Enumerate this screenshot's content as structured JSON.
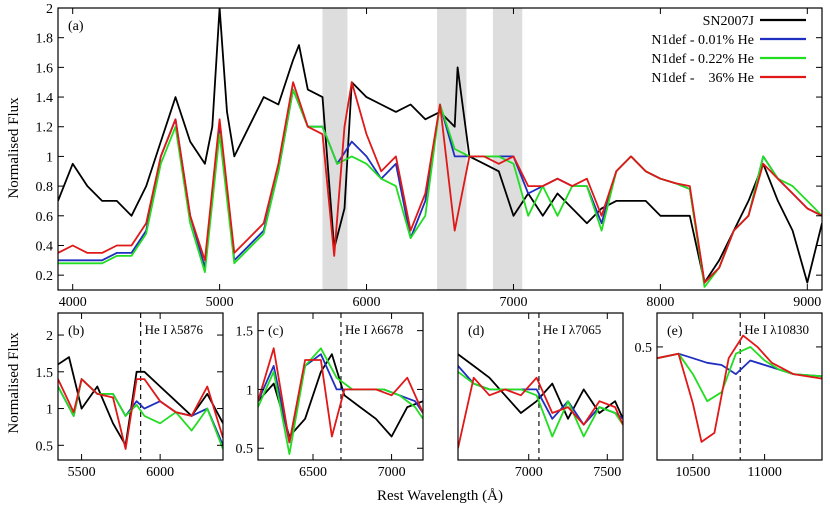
{
  "figure": {
    "ylabel": "Normalised Flux",
    "xlabel": "Rest Wavelength (Å)"
  },
  "colors": {
    "SN2007J": "#000000",
    "N1def - 0.01% He": "#1f2fbf",
    "N1def - 0.22% He": "#22dd22",
    "N1def -    36% He": "#e01818",
    "shade": "#dddddd"
  },
  "chart_data": [
    {
      "panel": "(a)",
      "type": "line",
      "xlim": [
        3900,
        9100
      ],
      "ylim": [
        0.1,
        2.0
      ],
      "xticks": [
        4000,
        5000,
        6000,
        7000,
        8000,
        9000
      ],
      "yticks": [
        0.2,
        0.4,
        0.6,
        0.8,
        1,
        1.2,
        1.4,
        1.6,
        1.8,
        2
      ],
      "ylabel": "Normalised Flux",
      "shaded_regions": [
        [
          5700,
          5870
        ],
        [
          6480,
          6680
        ],
        [
          6860,
          7060
        ]
      ],
      "legend": [
        "SN2007J",
        "N1def - 0.01% He",
        "N1def - 0.22% He",
        "N1def -    36% He"
      ],
      "legend_position": "top-right",
      "series": [
        {
          "name": "SN2007J",
          "x": [
            3900,
            4000,
            4100,
            4200,
            4300,
            4400,
            4500,
            4600,
            4650,
            4700,
            4800,
            4900,
            4950,
            5000,
            5050,
            5100,
            5200,
            5300,
            5400,
            5500,
            5540,
            5600,
            5700,
            5780,
            5850,
            5900,
            6000,
            6100,
            6200,
            6300,
            6400,
            6500,
            6600,
            6620,
            6700,
            6800,
            6900,
            7000,
            7100,
            7200,
            7300,
            7400,
            7500,
            7600,
            7700,
            7800,
            7900,
            8000,
            8100,
            8200,
            8300,
            8400,
            8500,
            8600,
            8700,
            8800,
            8900,
            9000,
            9100
          ],
          "y": [
            0.7,
            0.95,
            0.8,
            0.7,
            0.7,
            0.6,
            0.8,
            1.1,
            1.25,
            1.4,
            1.1,
            0.95,
            1.2,
            2.0,
            1.3,
            1.0,
            1.2,
            1.4,
            1.35,
            1.65,
            1.75,
            1.45,
            1.4,
            0.38,
            0.65,
            1.5,
            1.4,
            1.35,
            1.3,
            1.35,
            1.25,
            1.3,
            1.2,
            1.6,
            1.0,
            0.95,
            0.9,
            0.6,
            0.75,
            0.6,
            0.75,
            0.65,
            0.55,
            0.65,
            0.7,
            0.7,
            0.7,
            0.6,
            0.6,
            0.6,
            0.15,
            0.3,
            0.5,
            0.7,
            0.95,
            0.7,
            0.5,
            0.15,
            0.55
          ]
        },
        {
          "name": "N1def - 0.01% He",
          "x": [
            3900,
            4000,
            4100,
            4200,
            4300,
            4400,
            4500,
            4600,
            4700,
            4800,
            4900,
            5000,
            5100,
            5200,
            5300,
            5400,
            5500,
            5600,
            5700,
            5800,
            5900,
            6000,
            6100,
            6200,
            6300,
            6400,
            6500,
            6600,
            6700,
            6800,
            6900,
            7000,
            7100,
            7200,
            7300,
            7400,
            7500,
            7600,
            7700,
            7800,
            7900,
            8000,
            8100,
            8200,
            8300,
            8400,
            8500,
            8600,
            8700,
            8800,
            8900,
            9000,
            9100
          ],
          "y": [
            0.3,
            0.3,
            0.3,
            0.3,
            0.35,
            0.35,
            0.5,
            1.0,
            1.25,
            0.6,
            0.25,
            1.2,
            0.3,
            0.4,
            0.5,
            0.9,
            1.45,
            1.2,
            1.2,
            0.95,
            1.1,
            1.0,
            0.85,
            0.95,
            0.45,
            0.7,
            1.35,
            1.0,
            1.0,
            1.0,
            1.0,
            1.0,
            0.75,
            0.8,
            0.85,
            0.8,
            0.8,
            0.55,
            0.9,
            1.0,
            0.9,
            0.85,
            0.82,
            0.78,
            0.15,
            0.25,
            0.5,
            0.6,
            1.0,
            0.85,
            0.75,
            0.65,
            0.6
          ]
        },
        {
          "name": "N1def - 0.22% He",
          "x": [
            3900,
            4000,
            4100,
            4200,
            4300,
            4400,
            4500,
            4600,
            4700,
            4800,
            4900,
            5000,
            5100,
            5200,
            5300,
            5400,
            5500,
            5600,
            5700,
            5800,
            5900,
            6000,
            6100,
            6200,
            6300,
            6400,
            6500,
            6600,
            6700,
            6800,
            6900,
            7000,
            7100,
            7200,
            7300,
            7400,
            7500,
            7600,
            7700,
            7800,
            7900,
            8000,
            8100,
            8200,
            8300,
            8400,
            8500,
            8600,
            8700,
            8800,
            8900,
            9000,
            9100
          ],
          "y": [
            0.28,
            0.28,
            0.28,
            0.28,
            0.33,
            0.33,
            0.48,
            0.95,
            1.2,
            0.55,
            0.22,
            1.15,
            0.28,
            0.38,
            0.48,
            0.9,
            1.45,
            1.2,
            1.2,
            0.95,
            1.0,
            0.95,
            0.85,
            0.8,
            0.45,
            0.6,
            1.35,
            1.05,
            1.0,
            1.0,
            1.0,
            0.95,
            0.6,
            0.8,
            0.6,
            0.8,
            0.8,
            0.5,
            0.9,
            1.0,
            0.9,
            0.85,
            0.82,
            0.78,
            0.12,
            0.25,
            0.5,
            0.6,
            1.0,
            0.85,
            0.8,
            0.7,
            0.6
          ]
        },
        {
          "name": "N1def -    36% He",
          "x": [
            3900,
            4000,
            4100,
            4200,
            4300,
            4400,
            4500,
            4600,
            4700,
            4800,
            4900,
            5000,
            5100,
            5200,
            5300,
            5400,
            5500,
            5600,
            5700,
            5780,
            5850,
            5900,
            6000,
            6100,
            6200,
            6300,
            6400,
            6500,
            6600,
            6700,
            6800,
            6900,
            7000,
            7100,
            7200,
            7300,
            7400,
            7500,
            7600,
            7700,
            7800,
            7900,
            8000,
            8100,
            8200,
            8300,
            8400,
            8500,
            8600,
            8700,
            8800,
            8900,
            9000,
            9100
          ],
          "y": [
            0.35,
            0.4,
            0.35,
            0.35,
            0.4,
            0.4,
            0.55,
            1.0,
            1.25,
            0.6,
            0.3,
            1.25,
            0.35,
            0.45,
            0.55,
            0.95,
            1.5,
            1.2,
            1.15,
            0.33,
            1.2,
            1.5,
            1.15,
            0.9,
            1.0,
            0.5,
            0.75,
            1.35,
            0.5,
            1.0,
            1.0,
            0.95,
            1.0,
            0.8,
            0.8,
            0.85,
            0.8,
            0.85,
            0.6,
            0.9,
            1.0,
            0.9,
            0.85,
            0.82,
            0.8,
            0.15,
            0.25,
            0.5,
            0.6,
            0.95,
            0.85,
            0.75,
            0.65,
            0.6
          ]
        }
      ]
    },
    {
      "panel": "(b)",
      "type": "line",
      "annotation": "He I λ5876",
      "marker_x": 5876,
      "xlim": [
        5350,
        6400
      ],
      "ylim": [
        0.3,
        2.3
      ],
      "xticks": [
        5500,
        6000
      ],
      "yticks": [
        0.5,
        1,
        1.5,
        2
      ],
      "ylabel": "Normalised Flux",
      "series": [
        {
          "name": "SN2007J",
          "x": [
            5350,
            5420,
            5500,
            5600,
            5700,
            5780,
            5850,
            5900,
            6000,
            6100,
            6200,
            6300,
            6400
          ],
          "y": [
            1.6,
            1.7,
            1.0,
            1.3,
            0.8,
            0.5,
            1.5,
            1.5,
            1.3,
            1.1,
            0.9,
            1.2,
            0.8
          ]
        },
        {
          "name": "N1def - 0.01% He",
          "x": [
            5350,
            5450,
            5500,
            5600,
            5700,
            5780,
            5850,
            5900,
            6000,
            6100,
            6200,
            6300,
            6400
          ],
          "y": [
            1.3,
            0.9,
            1.4,
            1.2,
            1.2,
            0.9,
            1.1,
            1.0,
            1.1,
            0.95,
            0.9,
            1.0,
            0.5
          ]
        },
        {
          "name": "N1def - 0.22% He",
          "x": [
            5350,
            5450,
            5500,
            5600,
            5700,
            5780,
            5850,
            5900,
            6000,
            6100,
            6200,
            6300,
            6400
          ],
          "y": [
            1.3,
            0.9,
            1.4,
            1.2,
            1.2,
            0.9,
            1.05,
            0.9,
            0.8,
            0.95,
            0.7,
            1.0,
            0.45
          ]
        },
        {
          "name": "N1def -    36% He",
          "x": [
            5350,
            5450,
            5500,
            5600,
            5700,
            5780,
            5850,
            5900,
            6000,
            6100,
            6200,
            6300,
            6400
          ],
          "y": [
            1.4,
            0.95,
            1.4,
            1.2,
            1.15,
            0.45,
            1.4,
            1.4,
            1.1,
            0.95,
            0.9,
            1.3,
            0.6
          ]
        }
      ]
    },
    {
      "panel": "(c)",
      "type": "line",
      "annotation": "He I λ6678",
      "marker_x": 6678,
      "xlim": [
        6150,
        7200
      ],
      "ylim": [
        0.4,
        1.65
      ],
      "xticks": [
        6500,
        7000
      ],
      "yticks": [
        0.5,
        1,
        1.5
      ],
      "series": [
        {
          "name": "SN2007J",
          "x": [
            6150,
            6250,
            6350,
            6450,
            6550,
            6620,
            6700,
            6800,
            6900,
            7000,
            7100,
            7200
          ],
          "y": [
            0.9,
            1.05,
            0.6,
            0.75,
            1.15,
            1.3,
            0.95,
            0.85,
            0.75,
            0.6,
            0.85,
            0.9
          ]
        },
        {
          "name": "N1def - 0.01% He",
          "x": [
            6150,
            6250,
            6350,
            6450,
            6550,
            6650,
            6750,
            6850,
            6950,
            7050,
            7150,
            7200
          ],
          "y": [
            0.9,
            1.2,
            0.55,
            1.2,
            1.3,
            1.0,
            1.0,
            1.0,
            1.0,
            0.95,
            0.9,
            0.8
          ]
        },
        {
          "name": "N1def - 0.22% He",
          "x": [
            6150,
            6250,
            6350,
            6450,
            6550,
            6650,
            6750,
            6850,
            6950,
            7050,
            7150,
            7200
          ],
          "y": [
            0.85,
            1.15,
            0.45,
            1.2,
            1.35,
            1.1,
            1.0,
            1.0,
            1.0,
            0.95,
            0.85,
            0.75
          ]
        },
        {
          "name": "N1def -    36% He",
          "x": [
            6150,
            6250,
            6350,
            6450,
            6550,
            6620,
            6700,
            6800,
            6900,
            7000,
            7100,
            7200
          ],
          "y": [
            0.9,
            1.35,
            0.55,
            1.25,
            1.25,
            0.6,
            1.0,
            1.0,
            1.0,
            0.95,
            1.1,
            0.8
          ]
        }
      ]
    },
    {
      "panel": "(d)",
      "type": "line",
      "annotation": "He I λ7065",
      "marker_x": 7065,
      "xlim": [
        6550,
        7600
      ],
      "ylim": [
        0.4,
        1.65
      ],
      "xticks": [
        7000,
        7500
      ],
      "yticks": [],
      "series": [
        {
          "name": "SN2007J",
          "x": [
            6550,
            6650,
            6750,
            6850,
            6950,
            7050,
            7150,
            7250,
            7350,
            7450,
            7550,
            7600
          ],
          "y": [
            1.3,
            1.2,
            1.1,
            0.95,
            0.8,
            0.9,
            1.05,
            0.75,
            1.0,
            0.8,
            0.9,
            0.75
          ]
        },
        {
          "name": "N1def - 0.01% He",
          "x": [
            6550,
            6650,
            6750,
            6850,
            6950,
            7050,
            7150,
            7250,
            7350,
            7450,
            7550,
            7600
          ],
          "y": [
            1.2,
            1.05,
            1.0,
            1.0,
            1.0,
            1.0,
            0.75,
            0.9,
            0.7,
            0.85,
            0.8,
            0.75
          ]
        },
        {
          "name": "N1def - 0.22% He",
          "x": [
            6550,
            6650,
            6750,
            6850,
            6950,
            7050,
            7150,
            7250,
            7350,
            7450,
            7550,
            7600
          ],
          "y": [
            1.15,
            1.05,
            1.0,
            1.0,
            1.0,
            0.95,
            0.6,
            0.9,
            0.6,
            0.85,
            0.8,
            0.7
          ]
        },
        {
          "name": "N1def -    36% He",
          "x": [
            6550,
            6650,
            6750,
            6850,
            6950,
            7050,
            7150,
            7250,
            7350,
            7450,
            7550,
            7600
          ],
          "y": [
            0.5,
            1.1,
            0.95,
            1.0,
            0.95,
            1.1,
            0.8,
            0.85,
            0.7,
            0.9,
            0.85,
            0.7
          ]
        }
      ]
    },
    {
      "panel": "(e)",
      "type": "line",
      "annotation": "He I λ10830",
      "marker_x": 10830,
      "xlim": [
        10250,
        11400
      ],
      "ylim": [
        0.0,
        0.65
      ],
      "xticks": [
        10500,
        11000
      ],
      "yticks": [
        0.5
      ],
      "series": [
        {
          "name": "N1def - 0.01% He",
          "x": [
            10250,
            10400,
            10500,
            10600,
            10700,
            10800,
            10900,
            11000,
            11100,
            11200,
            11400
          ],
          "y": [
            0.45,
            0.47,
            0.45,
            0.43,
            0.42,
            0.38,
            0.44,
            0.42,
            0.4,
            0.38,
            0.37
          ]
        },
        {
          "name": "N1def - 0.22% He",
          "x": [
            10250,
            10400,
            10500,
            10600,
            10700,
            10800,
            10900,
            11000,
            11100,
            11200,
            11400
          ],
          "y": [
            0.45,
            0.47,
            0.38,
            0.26,
            0.3,
            0.47,
            0.5,
            0.44,
            0.4,
            0.38,
            0.37
          ]
        },
        {
          "name": "N1def -    36% He",
          "x": [
            10250,
            10400,
            10500,
            10560,
            10650,
            10750,
            10850,
            10950,
            11050,
            11200,
            11400
          ],
          "y": [
            0.45,
            0.47,
            0.25,
            0.08,
            0.12,
            0.45,
            0.55,
            0.5,
            0.43,
            0.38,
            0.36
          ]
        }
      ]
    }
  ]
}
